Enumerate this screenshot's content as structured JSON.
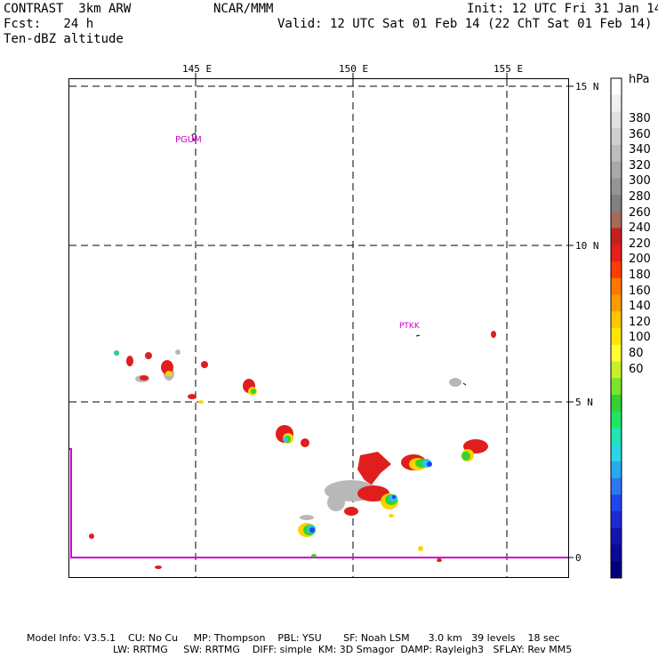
{
  "header": {
    "model": "CONTRAST  3km ARW",
    "org": "NCAR/MMM",
    "init": "Init: 12 UTC Fri 31 Jan 14",
    "fcst": "Fcst:   24 h",
    "valid": "Valid: 12 UTC Sat 01 Feb 14 (22 ChT Sat 01 Feb 14)",
    "field": "Ten-dBZ altitude"
  },
  "axes": {
    "lon_labels": [
      "145 E",
      "150 E",
      "155 E"
    ],
    "lat_labels": [
      "15 N",
      "10 N",
      "5 N",
      "0"
    ]
  },
  "stations": [
    {
      "id": "PGUM",
      "label": "PGUM"
    },
    {
      "id": "PTKK",
      "label": "PTKK"
    }
  ],
  "colorbar": {
    "unit": "hPa",
    "labels": [
      "380",
      "360",
      "340",
      "320",
      "300",
      "280",
      "260",
      "240",
      "220",
      "200",
      "180",
      "160",
      "140",
      "120",
      "100",
      "80",
      "60"
    ],
    "colors": [
      "#ffffff",
      "#f0f0f0",
      "#e0e0e0",
      "#cfcfcf",
      "#bdbdbd",
      "#a8a8a8",
      "#959595",
      "#808080",
      "#a86a5a",
      "#c81e1e",
      "#e61e1e",
      "#ff3c00",
      "#ff7800",
      "#ff9a00",
      "#ffc800",
      "#ffe600",
      "#ffff32",
      "#c8f028",
      "#78e628",
      "#32d232",
      "#1ee664",
      "#1ee6b4",
      "#28d7e6",
      "#28aaf0",
      "#2d78f0",
      "#1e46f0",
      "#1e28d2",
      "#1414b4",
      "#0a0a96",
      "#00007d"
    ]
  },
  "footer": {
    "line1": "Model Info: V3.5.1    CU: No Cu     MP: Thompson    PBL: YSU       SF: Noah LSM      3.0 km   39 levels    18 sec",
    "line2": "LW: RRTMG     SW: RRTMG    DIFF: simple  KM: 3D Smagor  DAMP: Rayleigh3   SFLAY: Rev MM5"
  },
  "palette": {
    "frame": "#000000",
    "station": "#cc00cc",
    "boundary": "#cc00cc"
  }
}
